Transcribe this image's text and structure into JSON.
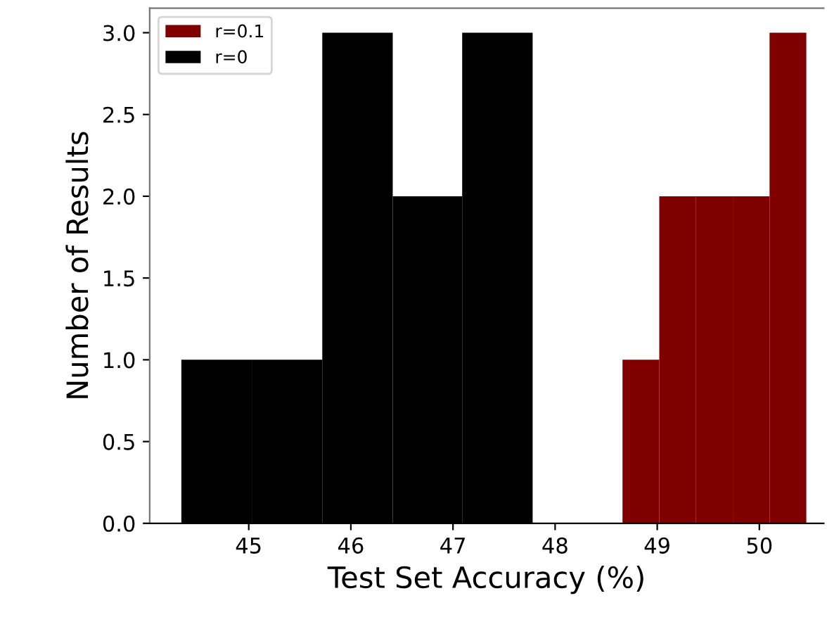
{
  "chart_data": {
    "type": "histogram",
    "xlabel": "Test Set Accuracy (%)",
    "ylabel": "Number of Results",
    "bins": [
      44.34,
      45.03,
      45.72,
      46.41,
      47.09,
      47.78,
      48.66,
      49.02,
      49.38,
      49.74,
      50.1,
      50.46
    ],
    "series": [
      {
        "name": "r=0.1",
        "color": "#800000",
        "values": [
          null,
          null,
          null,
          null,
          null,
          null,
          1,
          2,
          2,
          2,
          3
        ]
      },
      {
        "name": "r=0",
        "color": "#000000",
        "values": [
          1,
          1,
          3,
          2,
          3,
          null,
          null,
          null,
          null,
          null,
          null
        ]
      }
    ],
    "xlim": [
      44.03,
      50.63
    ],
    "xticks": [
      45,
      46,
      47,
      48,
      49,
      50
    ],
    "ylim": [
      0,
      3.15
    ],
    "yticks": [
      {
        "value": 0,
        "label": "0.0"
      },
      {
        "value": 0.5,
        "label": "0.5"
      },
      {
        "value": 1,
        "label": "1.0"
      },
      {
        "value": 1.5,
        "label": "1.5"
      },
      {
        "value": 2,
        "label": "2.0"
      },
      {
        "value": 2.5,
        "label": "2.5"
      },
      {
        "value": 3,
        "label": "3.0"
      }
    ],
    "grid": false,
    "legend": "top left"
  }
}
